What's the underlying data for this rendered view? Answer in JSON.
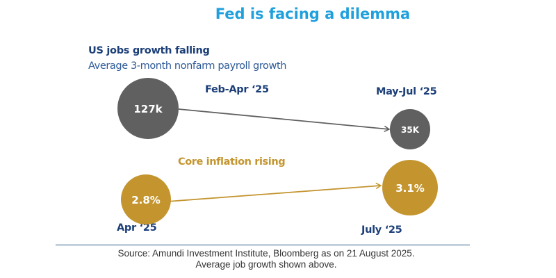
{
  "title": "Fed is facing a dilemma",
  "colors": {
    "title": "#1fa0dd",
    "jobs": "#606060",
    "inflation": "#c4952f",
    "navy": "#1c3f78"
  },
  "chart_data": [
    {
      "type": "bubble-arrow",
      "title": "US jobs growth falling",
      "subtitle": "Average 3-month nonfarm payroll growth",
      "categories": [
        "Feb-Apr ‘25",
        "May-Jul ‘25"
      ],
      "values": [
        127,
        35
      ],
      "unit": "thousand",
      "data_labels": [
        "127k",
        "35K"
      ],
      "color": "#606060"
    },
    {
      "type": "bubble-arrow",
      "title": "Core inflation rising",
      "categories": [
        "Apr ‘25",
        "July ‘25"
      ],
      "values": [
        2.8,
        3.1
      ],
      "unit": "%",
      "data_labels": [
        "2.8%",
        "3.1%"
      ],
      "color": "#c4952f"
    }
  ],
  "footer": {
    "source": "Source: Amundi Investment Institute, Bloomberg as on 21 August 2025.",
    "note": "Average job growth shown above."
  }
}
